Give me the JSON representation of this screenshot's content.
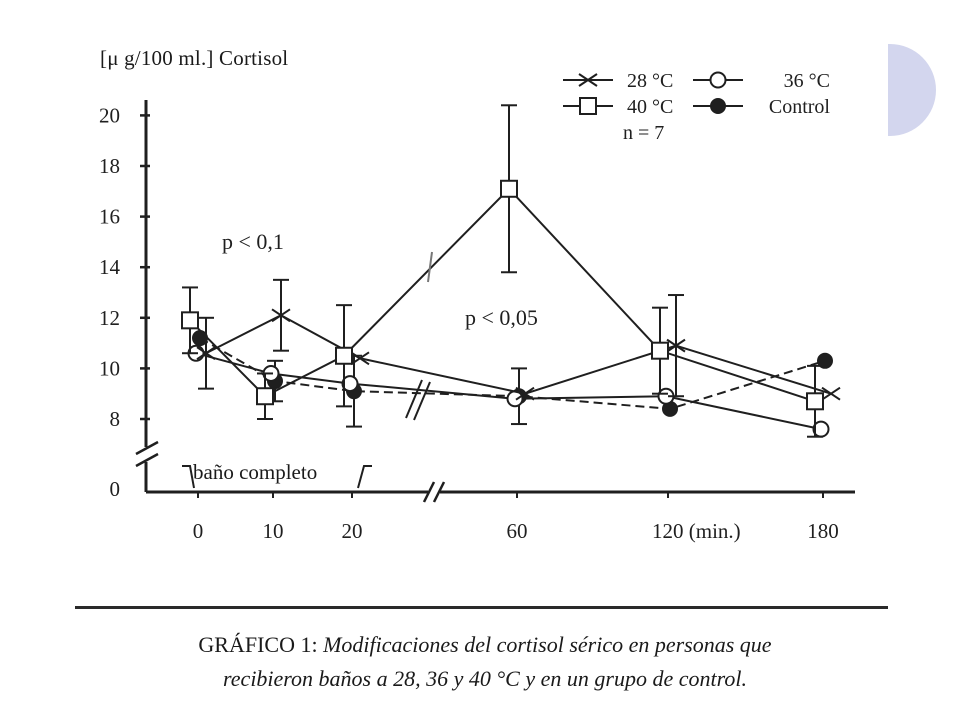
{
  "chart_data": {
    "type": "line",
    "title": "",
    "ylabel": "[μ g/100 ml.] Cortisol",
    "xlabel": "",
    "x_tick_labels": [
      "0",
      "10",
      "20",
      "60",
      "120 (min.)",
      "180"
    ],
    "x": [
      0,
      10,
      20,
      60,
      120,
      180
    ],
    "y_ticks": [
      0,
      8,
      10,
      12,
      14,
      16,
      18,
      20
    ],
    "ylim": [
      0,
      20.5
    ],
    "y_axis_break": "between 0 and 8",
    "x_axis_break": "between 20 and 60",
    "grid": false,
    "legend_position": "top-right",
    "legend_note": "n = 7",
    "series": [
      {
        "name": "28 °C",
        "marker": "x",
        "line": "solid",
        "values": [
          10.6,
          12.1,
          10.4,
          9.0,
          10.9,
          9.0
        ],
        "err": [
          1.4,
          1.4,
          0,
          0,
          2.0,
          0
        ]
      },
      {
        "name": "36 °C",
        "marker": "open-circle",
        "line": "solid",
        "values": [
          10.6,
          9.8,
          9.4,
          8.8,
          8.9,
          7.6
        ],
        "err": [
          0,
          0,
          0,
          0,
          0,
          0
        ]
      },
      {
        "name": "40 °C",
        "marker": "open-square",
        "line": "solid",
        "values": [
          11.9,
          8.9,
          10.5,
          17.1,
          10.7,
          8.7
        ],
        "err": [
          1.3,
          0.9,
          2.0,
          3.3,
          1.7,
          1.4
        ]
      },
      {
        "name": "Control",
        "marker": "filled-circle",
        "line": "dashed",
        "values": [
          11.2,
          9.5,
          9.1,
          8.9,
          8.4,
          10.3
        ],
        "err": [
          0,
          0.8,
          1.4,
          1.1,
          0,
          0
        ]
      }
    ],
    "annotations": [
      {
        "text": "p < 0,1",
        "x": 10,
        "y": 15.0
      },
      {
        "text": "p < 0,05",
        "x": 80,
        "y": 12.0
      }
    ],
    "bath_label": "baño completo"
  },
  "caption": {
    "lead": "GRÁFICO 1:",
    "line1_italic": "Modificaciones del cortisol sérico en personas que",
    "line2_italic": "recibieron baños a 28, 36 y 40 °C y en un grupo de control."
  }
}
